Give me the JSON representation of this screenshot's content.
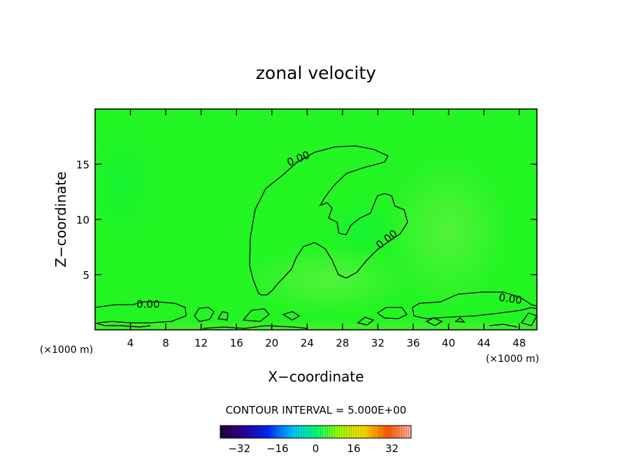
{
  "chart_data": {
    "type": "heatmap",
    "title": "zonal velocity",
    "xlabel": "X−coordinate",
    "ylabel": "Z−coordinate",
    "x_unit_left": "(×1000 m)",
    "x_unit_right": "(×1000 m)",
    "xlim": [
      0,
      50
    ],
    "ylim": [
      0,
      20
    ],
    "x_ticks": [
      4,
      8,
      12,
      16,
      20,
      24,
      28,
      32,
      36,
      40,
      44,
      48
    ],
    "x_tick_labels": [
      "4",
      "8",
      "12",
      "16",
      "20",
      "24",
      "28",
      "32",
      "36",
      "40",
      "44",
      "48"
    ],
    "y_ticks": [
      5,
      10,
      15
    ],
    "y_tick_labels": [
      "5",
      "10",
      "15"
    ],
    "field_value_dominant": 0,
    "contours": [
      {
        "level": 0,
        "label": "0.00",
        "label_positions": [
          [
            23,
            15.5
          ],
          [
            33,
            8.2
          ],
          [
            6,
            2.3
          ],
          [
            47,
            2.8
          ]
        ]
      }
    ],
    "contour_interval_text": "CONTOUR INTERVAL = 5.000E+00",
    "colorbar": {
      "range": [
        -40,
        40
      ],
      "ticks": [
        -32,
        -16,
        0,
        16,
        32
      ],
      "tick_labels": [
        "−32",
        "−16",
        "0",
        "16",
        "32"
      ]
    },
    "colors": {
      "field": "#22f522",
      "field_light": "#5ef240",
      "contour": "#000000",
      "axis": "#000000"
    }
  }
}
